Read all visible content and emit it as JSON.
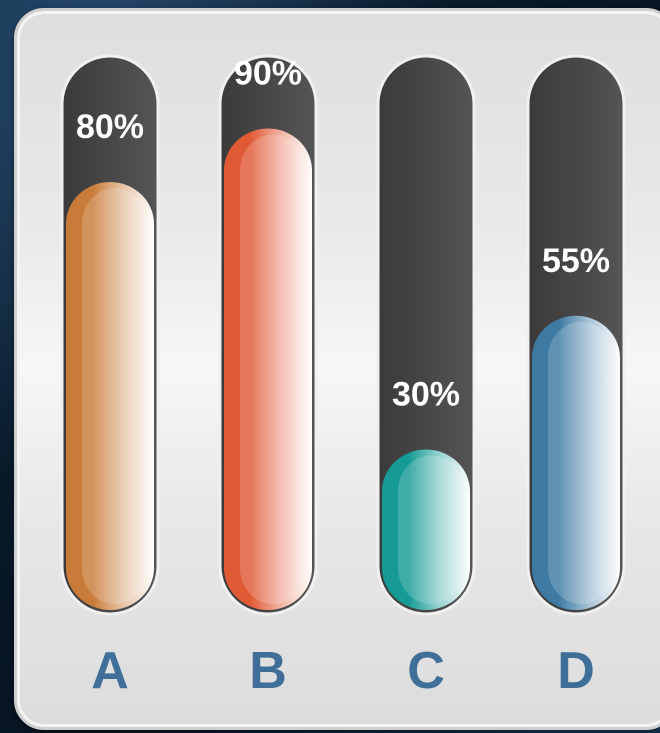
{
  "chart_data": {
    "type": "bar",
    "orientation": "vertical",
    "categories": [
      "A",
      "B",
      "C",
      "D"
    ],
    "values": [
      80,
      90,
      30,
      55
    ],
    "value_labels": [
      "80%",
      "90%",
      "30%",
      "55%"
    ],
    "ylim": [
      0,
      100
    ],
    "grid": false,
    "colors": [
      "#c97c3a",
      "#e15a36",
      "#169a95",
      "#3e7aa3"
    ],
    "track_color": "#474747",
    "category_label_color": "#3f6f98"
  }
}
